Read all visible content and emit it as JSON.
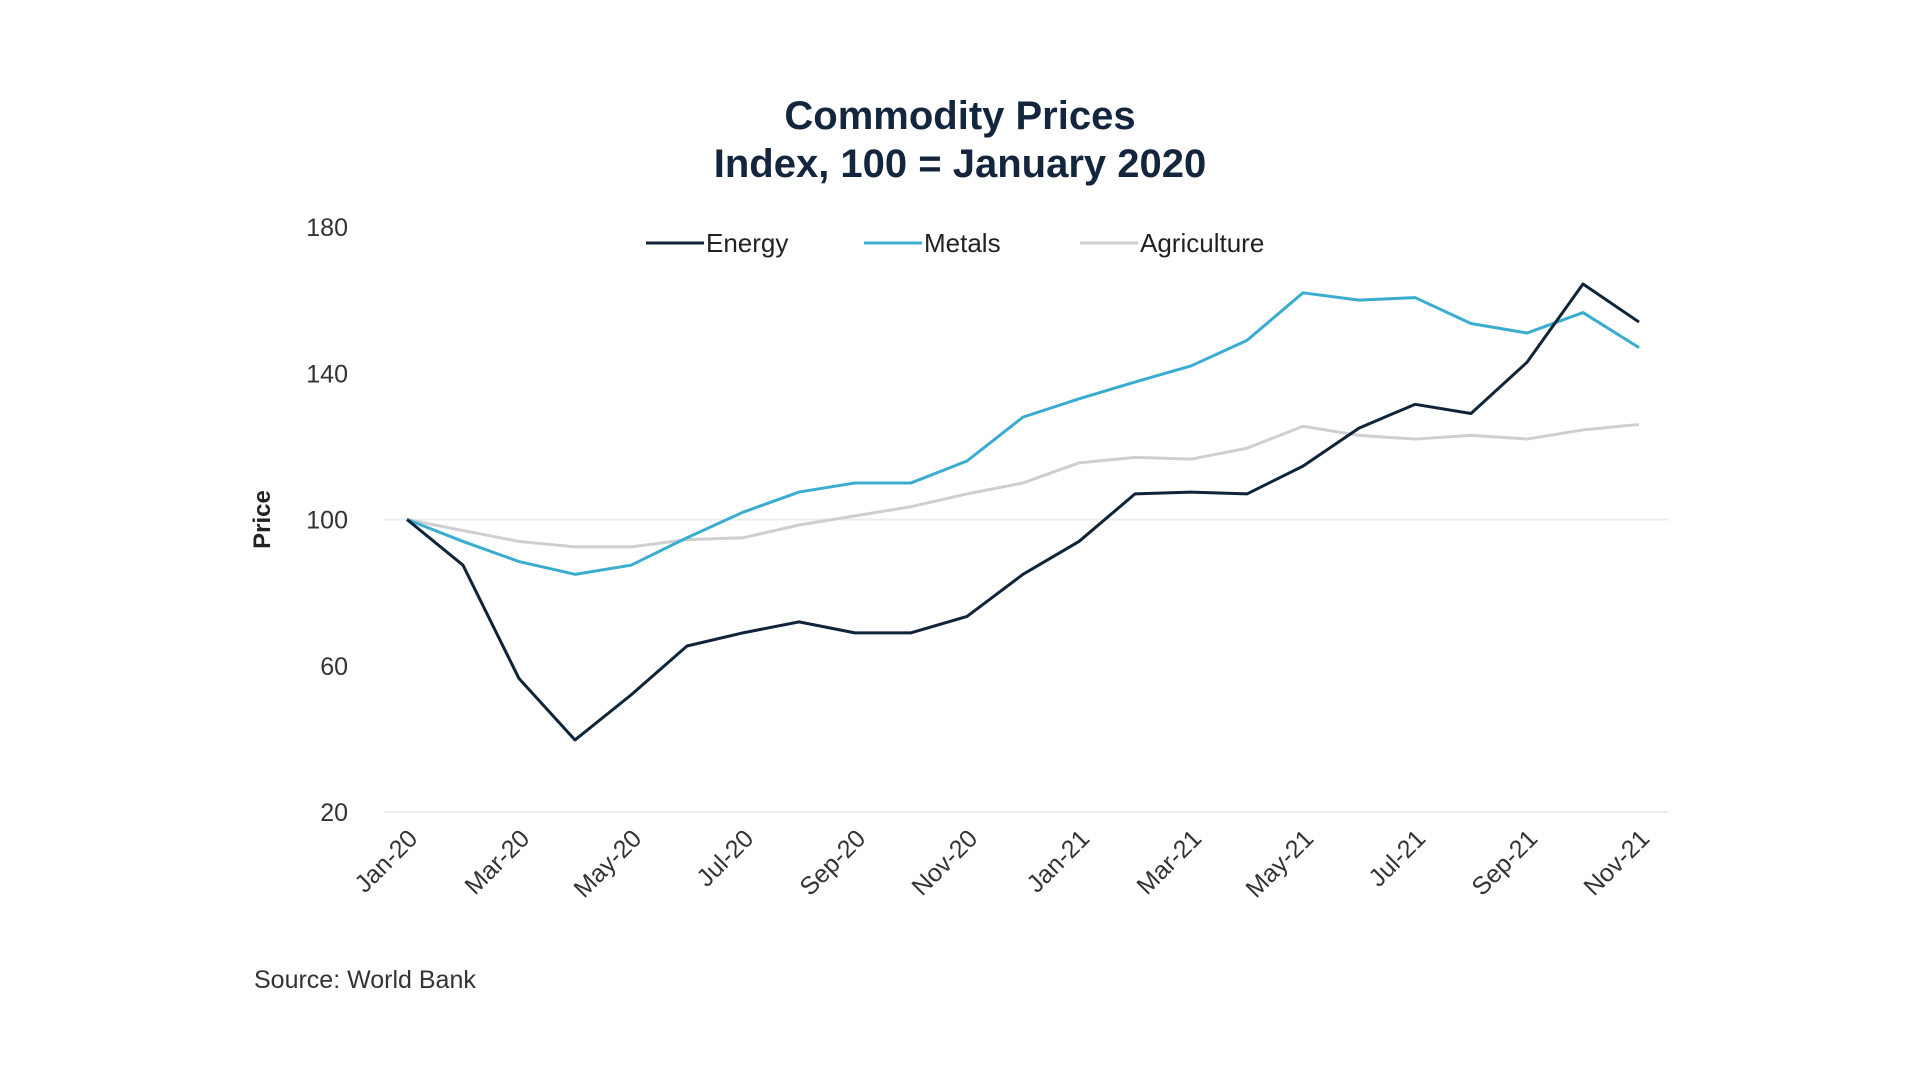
{
  "chart_data": {
    "type": "line",
    "title": "Commodity Prices",
    "subtitle": "Index, 100 = January 2020",
    "xlabel": "",
    "ylabel": "Price",
    "source": "Source: World Bank",
    "ylim": [
      20,
      180
    ],
    "yticks": [
      20,
      60,
      100,
      140,
      180
    ],
    "grid": "horizontal lines at 20 and 100",
    "legend_placement": "top",
    "x": [
      "Jan-20",
      "Feb-20",
      "Mar-20",
      "Apr-20",
      "May-20",
      "Jun-20",
      "Jul-20",
      "Aug-20",
      "Sep-20",
      "Oct-20",
      "Nov-20",
      "Dec-20",
      "Jan-21",
      "Feb-21",
      "Mar-21",
      "Apr-21",
      "May-21",
      "Jun-21",
      "Jul-21",
      "Aug-21",
      "Sep-21",
      "Oct-21",
      "Nov-21"
    ],
    "xtick_labels": [
      "Jan-20",
      "Mar-20",
      "May-20",
      "Jul-20",
      "Sep-20",
      "Nov-20",
      "Jan-21",
      "Mar-21",
      "May-21",
      "Jul-21",
      "Sep-21",
      "Nov-21"
    ],
    "series": [
      {
        "name": "Energy",
        "color": "#0f2438",
        "values": [
          100,
          87.5,
          56.5,
          39.7,
          52,
          65.4,
          69,
          72,
          69,
          69,
          73.5,
          85,
          94,
          107,
          107.5,
          107,
          114.6,
          125,
          131.5,
          129,
          143,
          164.4,
          154
        ]
      },
      {
        "name": "Metals",
        "color": "#3aacd0",
        "values": [
          100,
          94,
          88.5,
          85,
          87.5,
          95,
          102,
          107.5,
          110,
          110,
          116,
          128,
          133,
          137.6,
          142,
          149,
          162,
          160,
          160.7,
          153.6,
          151,
          156.6,
          147
        ]
      },
      {
        "name": "Agriculture",
        "color": "#cfcfcf",
        "values": [
          100,
          97,
          94,
          92.5,
          92.5,
          94.5,
          95,
          98.5,
          101,
          103.5,
          107,
          110,
          115.5,
          117,
          116.5,
          119.5,
          125.5,
          123,
          122,
          123,
          122,
          124.5,
          126
        ]
      }
    ]
  }
}
